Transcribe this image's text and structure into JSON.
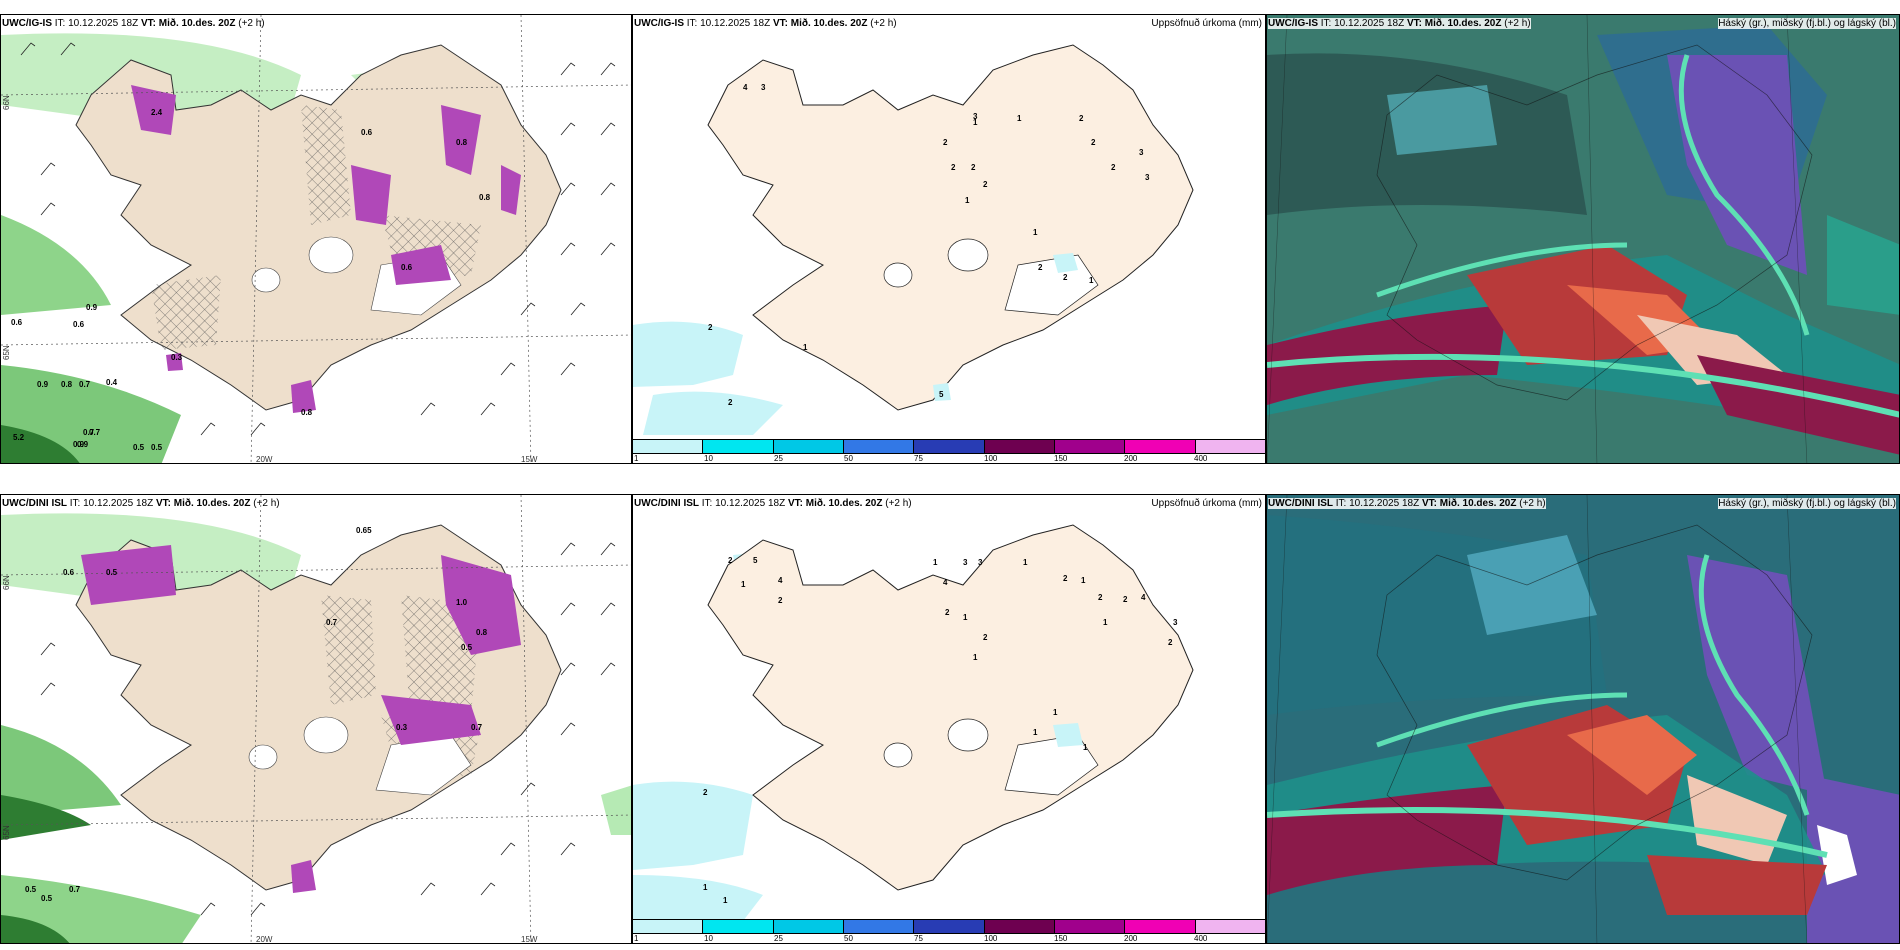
{
  "rows": [
    {
      "model": "UWC/IG-IS",
      "it_label": "IT:",
      "it_value": "10.12.2025 18Z",
      "vt_label": "VT:",
      "vt_value": "Mið. 10.des. 20Z",
      "lead": "(+2 h)"
    },
    {
      "model": "UWC/DINI ISL",
      "it_label": "IT:",
      "it_value": "10.12.2025 18Z",
      "vt_label": "VT:",
      "vt_value": "Mið. 10.des. 20Z",
      "lead": "(+2 h)"
    }
  ],
  "precip_title": "Uppsöfnuð úrkoma (mm)",
  "cloud_title": "Háský (gr.), miðský (fj.bl.) og lágský (bl.)",
  "colorbar": {
    "levels": [
      "1",
      "10",
      "25",
      "50",
      "75",
      "100",
      "150",
      "200",
      "400"
    ],
    "colors": [
      "#c8f4f8",
      "#00e6f0",
      "#00c8e6",
      "#3278e6",
      "#283cb4",
      "#6e0050",
      "#a0008c",
      "#f000b4",
      "#f0b4f0"
    ]
  },
  "axis_labels": {
    "lon_20w": "20W",
    "lon_15w": "15W",
    "lat_66n": "66N",
    "lat_65n": "65N"
  },
  "wind_panel_values": [
    [
      "2.4",
      "0.6",
      "0.9",
      "0.8",
      "0.3",
      "0.4",
      "0.6",
      "0.9",
      "0.7",
      "0.6",
      "0.8",
      "0.9",
      "0.8",
      "0.7",
      "0.6",
      "0.7",
      "5.2",
      "0.9",
      "0.5",
      "0.5",
      "0.8"
    ],
    [
      "0.65",
      "0.5",
      "0.7",
      "1.0",
      "0.8",
      "0.6",
      "0.5",
      "0.3",
      "0.7",
      "0.5",
      "0.7",
      "0.5"
    ]
  ],
  "precip_panel_values": [
    [
      "4",
      "3",
      "1",
      "2",
      "2",
      "2",
      "2",
      "3",
      "2",
      "2",
      "3",
      "1",
      "2",
      "1",
      "1",
      "2",
      "2",
      "1",
      "2",
      "1",
      "2",
      "3",
      "5"
    ],
    [
      "2",
      "5",
      "4",
      "1",
      "2",
      "4",
      "1",
      "3",
      "1",
      "2",
      "1",
      "2",
      "2",
      "1",
      "3",
      "2",
      "2",
      "1",
      "4",
      "3",
      "2",
      "1",
      "1",
      "1",
      "1",
      "2",
      "1",
      "1"
    ]
  ]
}
